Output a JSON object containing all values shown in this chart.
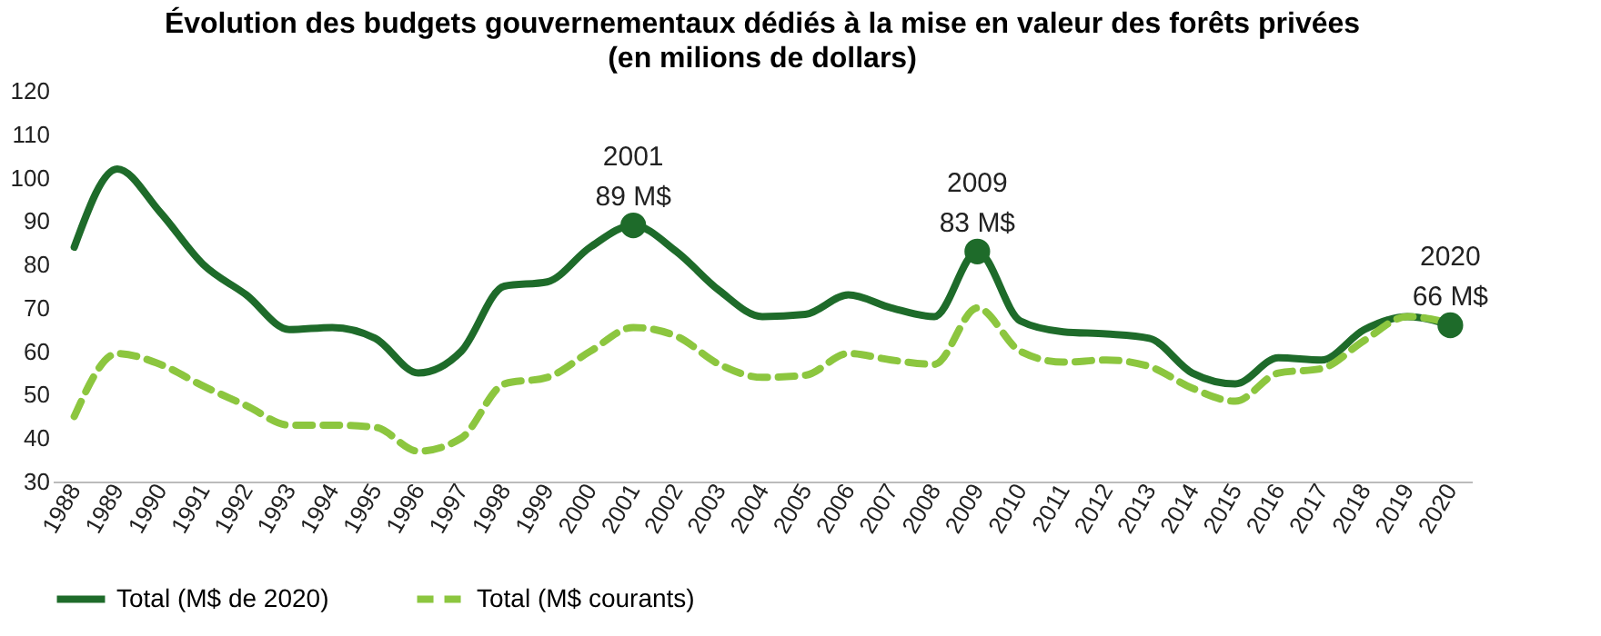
{
  "chart_data": {
    "type": "line",
    "title": "Évolution des budgets gouvernementaux dédiés à la mise en valeur des forêts privées",
    "subtitle": "(en milions de dollars)",
    "categories": [
      "1988",
      "1989",
      "1990",
      "1991",
      "1992",
      "1993",
      "1994",
      "1995",
      "1996",
      "1997",
      "1998",
      "1999",
      "2000",
      "2001",
      "2002",
      "2003",
      "2004",
      "2005",
      "2006",
      "2007",
      "2008",
      "2009",
      "2010",
      "2011",
      "2012",
      "2013",
      "2014",
      "2015",
      "2016",
      "2017",
      "2018",
      "2019",
      "2020"
    ],
    "series": [
      {
        "name": "Total (M$ de 2020)",
        "color": "#1e6b2a",
        "line_style": "solid",
        "values": [
          84,
          102,
          92,
          80,
          73,
          65,
          65.5,
          63,
          55,
          60,
          75,
          76,
          84,
          89,
          83,
          74,
          68,
          68.5,
          73,
          70,
          68,
          83,
          67,
          64.5,
          64,
          63,
          55,
          52.5,
          58.5,
          58,
          65,
          68,
          66
        ]
      },
      {
        "name": "Total (M$ courants)",
        "color": "#8cc63f",
        "line_style": "dashed",
        "values": [
          45,
          59.5,
          57,
          52,
          47.5,
          43,
          43,
          42.5,
          37,
          40,
          52.5,
          54,
          60,
          65.5,
          63.5,
          57,
          54,
          54.5,
          59.5,
          58,
          57,
          70,
          60,
          57.5,
          58,
          56.5,
          51.5,
          48.5,
          55,
          56,
          62.5,
          68,
          66.5
        ]
      },
      {
        "type": "scatter",
        "color": "#1e6b2a",
        "marker": "circle",
        "values": [
          null,
          null,
          null,
          null,
          null,
          null,
          null,
          null,
          null,
          null,
          null,
          null,
          null,
          89,
          null,
          null,
          null,
          null,
          null,
          null,
          null,
          83,
          null,
          null,
          null,
          null,
          null,
          null,
          null,
          null,
          null,
          null,
          66
        ]
      }
    ],
    "annotations": [
      {
        "text": "2001\n89 M$",
        "x": "2001",
        "y": 89
      },
      {
        "text": "2009\n83 M$",
        "x": "2009",
        "y": 83
      },
      {
        "text": "2020\n66 M$",
        "x": "2020",
        "y": 66
      }
    ],
    "ylim": [
      30,
      120
    ],
    "yticks": [
      30,
      40,
      50,
      60,
      70,
      80,
      90,
      100,
      110,
      120
    ],
    "grid": false,
    "legend": "bottom",
    "marker": "none"
  }
}
